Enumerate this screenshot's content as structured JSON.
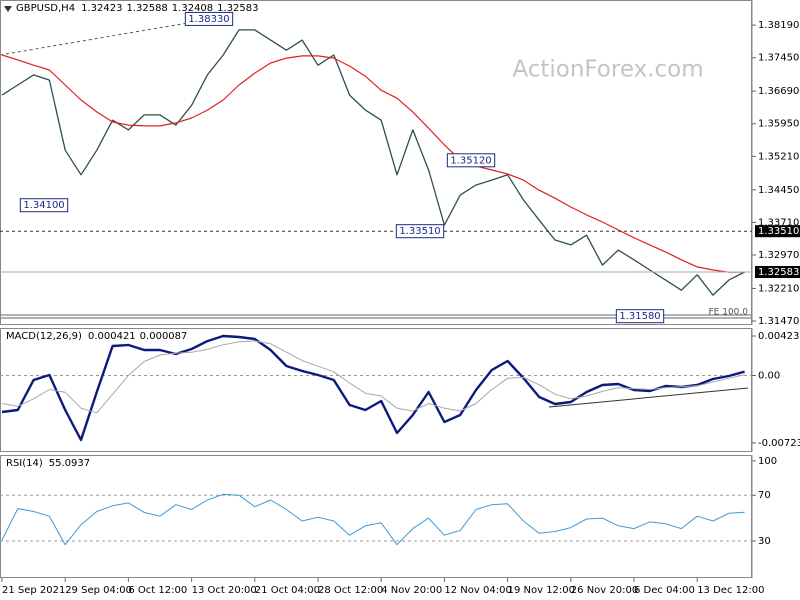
{
  "watermark": "ActionForex.com",
  "chart_data": [
    {
      "type": "line",
      "title": "GBPUSD,H4",
      "readout": [
        1.32423,
        1.32588,
        1.32408,
        1.32583
      ],
      "categories": [
        "21 Sep 2021",
        null,
        null,
        null,
        "29 Sep 04:00",
        null,
        null,
        null,
        "6 Oct 12:00",
        null,
        null,
        null,
        "13 Oct 20:00",
        null,
        null,
        null,
        "21 Oct 04:00",
        null,
        null,
        null,
        "28 Oct 12:00",
        null,
        null,
        null,
        "4 Nov 20:00",
        null,
        null,
        null,
        "12 Nov 04:00",
        null,
        null,
        null,
        "19 Nov 12:00",
        null,
        null,
        null,
        "26 Nov 20:00",
        null,
        null,
        null,
        "6 Dec 04:00",
        null,
        null,
        null,
        "13 Dec 12:00",
        null,
        null,
        null
      ],
      "series": [
        {
          "name": "GBPUSD",
          "color": "#2f4f4f",
          "width": 1.3,
          "values": [
            1.366,
            1.3683,
            1.3706,
            1.3694,
            1.3535,
            1.3479,
            1.3535,
            1.3603,
            1.3581,
            1.3615,
            1.3615,
            1.3592,
            1.3637,
            1.3706,
            1.3751,
            1.3808,
            1.3808,
            1.3785,
            1.3762,
            1.3785,
            1.3728,
            1.3751,
            1.366,
            1.3626,
            1.3603,
            1.3479,
            1.3581,
            1.349,
            1.3365,
            1.3433,
            1.3456,
            1.3467,
            1.3479,
            1.3422,
            1.3376,
            1.3331,
            1.332,
            1.3342,
            1.3274,
            1.3308,
            1.3286,
            1.3263,
            1.324,
            1.3217,
            1.3252,
            1.3206,
            1.324,
            1.32583
          ]
        },
        {
          "name": "MA",
          "color": "#e02020",
          "width": 1.2,
          "values": [
            1.3751,
            1.374,
            1.3728,
            1.3717,
            1.3683,
            1.3649,
            1.3622,
            1.3599,
            1.3592,
            1.359,
            1.359,
            1.3597,
            1.3608,
            1.3626,
            1.3649,
            1.3683,
            1.371,
            1.3733,
            1.3744,
            1.3749,
            1.3749,
            1.3744,
            1.3726,
            1.3703,
            1.3671,
            1.3653,
            1.3622,
            1.3585,
            1.3547,
            1.3513,
            1.3499,
            1.349,
            1.3481,
            1.3467,
            1.3444,
            1.3426,
            1.3406,
            1.3388,
            1.3372,
            1.3354,
            1.3336,
            1.332,
            1.3304,
            1.3286,
            1.327,
            1.3263,
            1.3258,
            1.3258
          ]
        }
      ],
      "ylim": [
        1.3138,
        1.3876
      ],
      "yticks": [
        {
          "value": 1.3819,
          "label": "1.38190"
        },
        {
          "value": 1.3745,
          "label": "1.37450"
        },
        {
          "value": 1.3669,
          "label": "1.36690"
        },
        {
          "value": 1.3595,
          "label": "1.35950"
        },
        {
          "value": 1.3521,
          "label": "1.35210"
        },
        {
          "value": 1.3445,
          "label": "1.34450"
        },
        {
          "value": 1.3371,
          "label": "1.33710"
        },
        {
          "value": 1.3297,
          "label": "1.32970"
        },
        {
          "value": 1.3221,
          "label": "1.32210"
        },
        {
          "value": 1.3147,
          "label": "1.31470"
        }
      ],
      "price_levels": [
        {
          "value": 1.3351,
          "label": "1.33510",
          "style": "dashed"
        },
        {
          "value": 1.32583,
          "label": "1.32583",
          "style": "solid"
        }
      ],
      "annotations": [
        {
          "text": "1.38330",
          "value": 1.3833
        },
        {
          "text": "1.34100",
          "value": 1.341
        },
        {
          "text": "1.35120",
          "value": 1.3512
        },
        {
          "text": "1.33510",
          "value": 1.3351
        },
        {
          "text": "1.31580",
          "value": 1.3158
        }
      ],
      "note": "FE 100.0"
    },
    {
      "type": "line",
      "title": "MACD(12,26,9)",
      "readout": [
        0.000421,
        8.7e-05
      ],
      "series": [
        {
          "name": "MACD",
          "color": "#0c1a80",
          "width": 2.4,
          "values": [
            -0.00391,
            -0.0037,
            -0.00048,
            5e-05,
            -0.0037,
            -0.00691,
            -0.00177,
            0.00316,
            0.00327,
            0.00273,
            0.00273,
            0.0023,
            0.00284,
            0.00369,
            0.00423,
            0.00412,
            0.00391,
            0.00273,
            0.00102,
            0.00048,
            5e-05,
            -0.00048,
            -0.00316,
            -0.0037,
            -0.00273,
            -0.00616,
            -0.00423,
            -0.00177,
            -0.00498,
            -0.00423,
            -0.00155,
            0.00059,
            0.00155,
            -0.00027,
            -0.0023,
            -0.00305,
            -0.00284,
            -0.00177,
            -0.00102,
            -0.00091,
            -0.00155,
            -0.00166,
            -0.00112,
            -0.00123,
            -0.00102,
            -0.00037,
            -5e-05,
            0.000421
          ]
        },
        {
          "name": "Signal",
          "color": "#a8a8a8",
          "width": 1,
          "values": [
            -0.003,
            -0.0033,
            -0.0025,
            -0.0015,
            -0.0018,
            -0.0035,
            -0.004,
            -0.002,
            0.0,
            0.0015,
            0.0022,
            0.0024,
            0.0025,
            0.0028,
            0.0033,
            0.0036,
            0.0037,
            0.0034,
            0.0025,
            0.0016,
            0.001,
            0.0004,
            -0.0008,
            -0.0019,
            -0.0022,
            -0.0035,
            -0.0038,
            -0.003,
            -0.0035,
            -0.0038,
            -0.003,
            -0.0015,
            -0.0003,
            -0.0002,
            -0.001,
            -0.002,
            -0.0025,
            -0.0022,
            -0.0017,
            -0.0013,
            -0.0014,
            -0.0015,
            -0.0013,
            -0.0012,
            -0.0011,
            -0.0007,
            -0.0003,
            8.7e-05
          ]
        }
      ],
      "ylim": [
        -0.008194,
        0.005088
      ],
      "yticks": [
        0.004231,
        {
          "value": 0,
          "label": "0.00"
        },
        -0.00723
      ],
      "levels": [
        0
      ]
    },
    {
      "type": "line",
      "title": "RSI(14)",
      "readout": [
        55.0937
      ],
      "series": [
        {
          "name": "RSI",
          "color": "#3d9ad8",
          "width": 1,
          "values": [
            30.8,
            58.3,
            55.8,
            51.7,
            26.7,
            44.2,
            55.8,
            60.8,
            63.3,
            55.0,
            51.7,
            61.7,
            57.5,
            65.8,
            70.8,
            70.0,
            60.0,
            65.8,
            57.5,
            47.5,
            50.8,
            47.5,
            35.0,
            43.3,
            45.8,
            26.7,
            40.8,
            50.0,
            35.0,
            39.2,
            57.5,
            61.7,
            62.5,
            47.5,
            36.7,
            38.3,
            41.7,
            49.2,
            50.0,
            43.3,
            40.8,
            46.7,
            45.0,
            40.8,
            51.7,
            47.5,
            54.2,
            55.0937
          ]
        }
      ],
      "ylim": [
        -2.4,
        105.2
      ],
      "yticks": [
        100,
        70,
        30
      ],
      "levels": [
        70,
        30
      ]
    }
  ]
}
